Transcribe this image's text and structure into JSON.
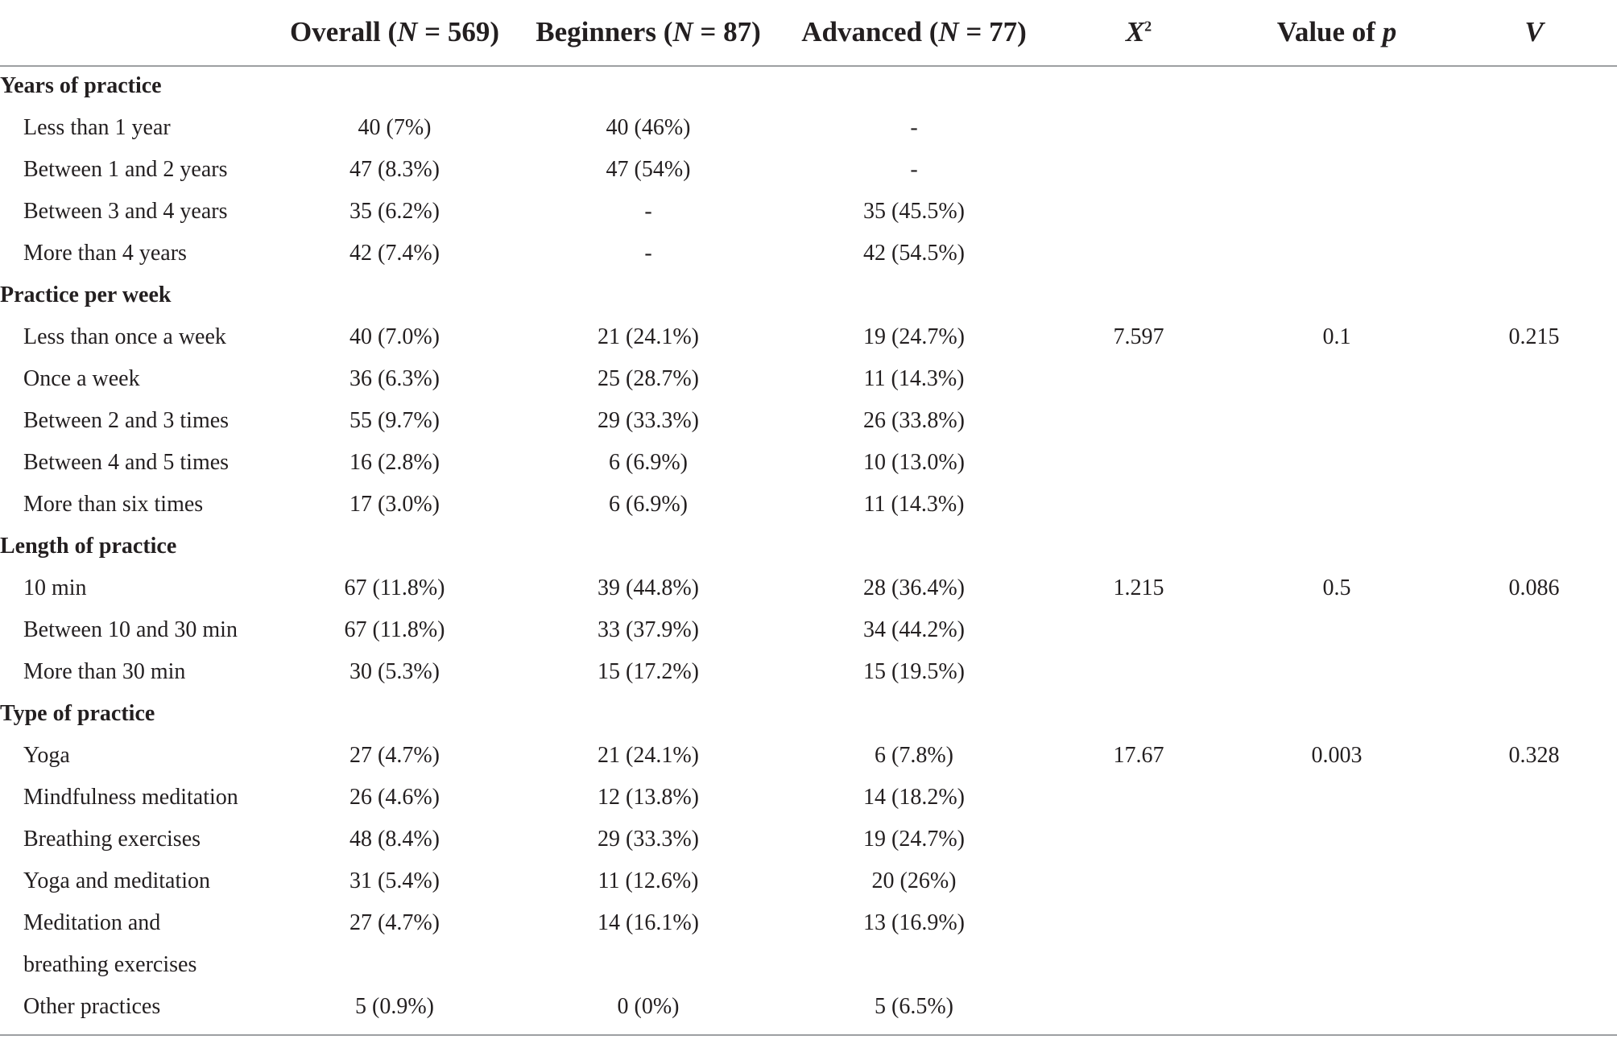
{
  "header": {
    "overall": {
      "prefix": "Overall (",
      "n": "N",
      "suffix": " = 569)"
    },
    "beginners": {
      "prefix": "Beginners (",
      "n": "N",
      "suffix": " = 87)"
    },
    "advanced": {
      "prefix": "Advanced (",
      "n": "N",
      "suffix": " = 77)"
    },
    "chi": {
      "base": "X",
      "sup": "2"
    },
    "pvalue": {
      "prefix": "Value of ",
      "var": "p"
    },
    "v": "V"
  },
  "sections": [
    {
      "title": "Years of practice",
      "chi": "",
      "p": "",
      "v": "",
      "rows": [
        {
          "label": "Less than 1 year",
          "overall": "40 (7%)",
          "beginners": "40 (46%)",
          "advanced": "-"
        },
        {
          "label": "Between 1 and 2 years",
          "overall": "47 (8.3%)",
          "beginners": "47 (54%)",
          "advanced": "-"
        },
        {
          "label": "Between 3 and 4 years",
          "overall": "35 (6.2%)",
          "beginners": "-",
          "advanced": "35 (45.5%)"
        },
        {
          "label": "More than 4 years",
          "overall": "42 (7.4%)",
          "beginners": "-",
          "advanced": "42 (54.5%)"
        }
      ]
    },
    {
      "title": "Practice per week",
      "chi": "7.597",
      "p": "0.1",
      "v": "0.215",
      "rows": [
        {
          "label": "Less than once a week",
          "overall": "40 (7.0%)",
          "beginners": "21 (24.1%)",
          "advanced": "19 (24.7%)"
        },
        {
          "label": "Once a week",
          "overall": "36 (6.3%)",
          "beginners": "25 (28.7%)",
          "advanced": "11 (14.3%)"
        },
        {
          "label": "Between 2 and 3 times",
          "overall": "55 (9.7%)",
          "beginners": "29 (33.3%)",
          "advanced": "26 (33.8%)"
        },
        {
          "label": "Between 4 and 5 times",
          "overall": "16 (2.8%)",
          "beginners": "6 (6.9%)",
          "advanced": "10 (13.0%)"
        },
        {
          "label": "More than six times",
          "overall": "17 (3.0%)",
          "beginners": "6 (6.9%)",
          "advanced": "11 (14.3%)"
        }
      ]
    },
    {
      "title": "Length of practice",
      "chi": "1.215",
      "p": "0.5",
      "v": "0.086",
      "rows": [
        {
          "label": "10 min",
          "overall": "67 (11.8%)",
          "beginners": "39 (44.8%)",
          "advanced": "28 (36.4%)"
        },
        {
          "label": "Between 10 and 30 min",
          "overall": "67 (11.8%)",
          "beginners": "33 (37.9%)",
          "advanced": "34 (44.2%)"
        },
        {
          "label": "More than 30 min",
          "overall": "30 (5.3%)",
          "beginners": "15 (17.2%)",
          "advanced": "15 (19.5%)"
        }
      ]
    },
    {
      "title": "Type of practice",
      "chi": "17.67",
      "p": "0.003",
      "v": "0.328",
      "rows": [
        {
          "label": "Yoga",
          "overall": "27 (4.7%)",
          "beginners": "21 (24.1%)",
          "advanced": "6 (7.8%)"
        },
        {
          "label": "Mindfulness meditation",
          "overall": "26 (4.6%)",
          "beginners": "12 (13.8%)",
          "advanced": "14 (18.2%)"
        },
        {
          "label": "Breathing exercises",
          "overall": "48 (8.4%)",
          "beginners": "29 (33.3%)",
          "advanced": "19 (24.7%)"
        },
        {
          "label": "Yoga and meditation",
          "overall": "31 (5.4%)",
          "beginners": "11 (12.6%)",
          "advanced": "20 (26%)"
        },
        {
          "label": "Meditation and",
          "label2": "breathing exercises",
          "overall": "27 (4.7%)",
          "beginners": "14 (16.1%)",
          "advanced": "13 (16.9%)"
        },
        {
          "label": "Other practices",
          "overall": "5 (0.9%)",
          "beginners": "0 (0%)",
          "advanced": "5 (6.5%)"
        }
      ]
    }
  ]
}
